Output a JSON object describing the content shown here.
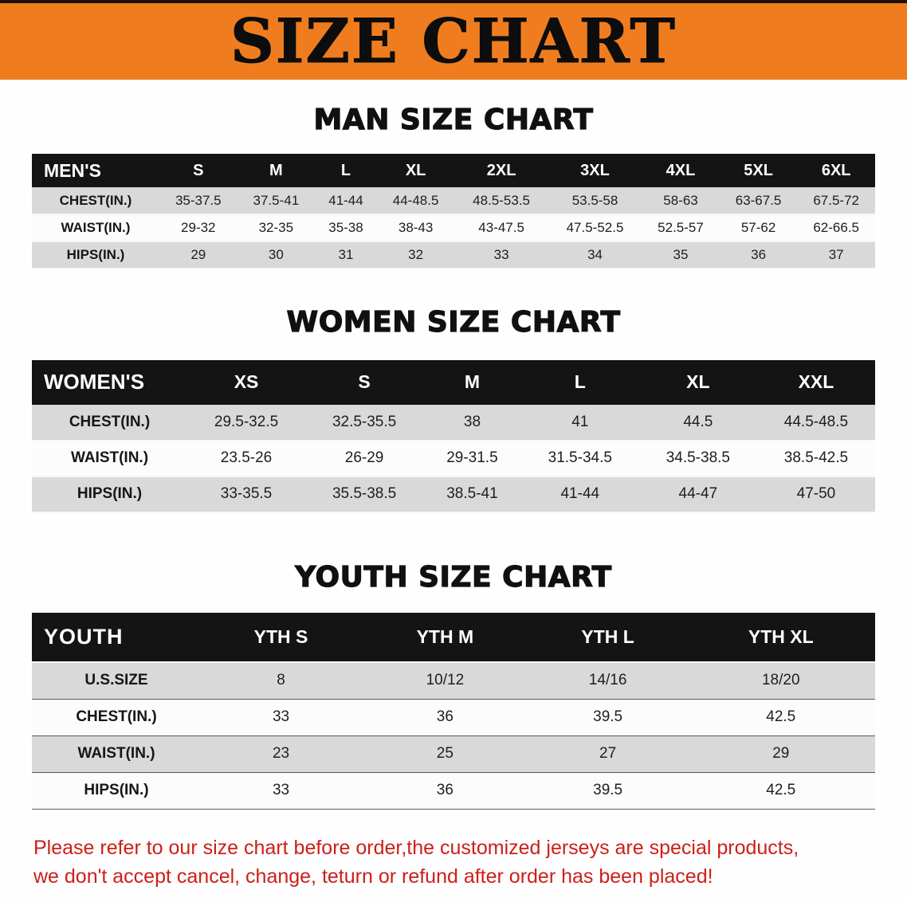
{
  "colors": {
    "banner_bg": "#ef7d1f",
    "table_header_bg": "#141414",
    "stripe_gray": "#d9d9d9",
    "note_red": "#cc1f1a"
  },
  "banner": {
    "title": "SIZE CHART"
  },
  "sections": [
    {
      "heading": "MAN SIZE CHART",
      "table": {
        "header": [
          "MEN'S",
          "S",
          "M",
          "L",
          "XL",
          "2XL",
          "3XL",
          "4XL",
          "5XL",
          "6XL"
        ],
        "rows": [
          [
            "CHEST(IN.)",
            "35-37.5",
            "37.5-41",
            "41-44",
            "44-48.5",
            "48.5-53.5",
            "53.5-58",
            "58-63",
            "63-67.5",
            "67.5-72"
          ],
          [
            "WAIST(IN.)",
            "29-32",
            "32-35",
            "35-38",
            "38-43",
            "43-47.5",
            "47.5-52.5",
            "52.5-57",
            "57-62",
            "62-66.5"
          ],
          [
            "HIPS(IN.)",
            "29",
            "30",
            "31",
            "32",
            "33",
            "34",
            "35",
            "36",
            "37"
          ]
        ]
      }
    },
    {
      "heading": "WOMEN SIZE CHART",
      "table": {
        "header": [
          "WOMEN'S",
          "XS",
          "S",
          "M",
          "L",
          "XL",
          "XXL"
        ],
        "rows": [
          [
            "CHEST(IN.)",
            "29.5-32.5",
            "32.5-35.5",
            "38",
            "41",
            "44.5",
            "44.5-48.5"
          ],
          [
            "WAIST(IN.)",
            "23.5-26",
            "26-29",
            "29-31.5",
            "31.5-34.5",
            "34.5-38.5",
            "38.5-42.5"
          ],
          [
            "HIPS(IN.)",
            "33-35.5",
            "35.5-38.5",
            "38.5-41",
            "41-44",
            "44-47",
            "47-50"
          ]
        ]
      }
    },
    {
      "heading": "YOUTH SIZE CHART",
      "table": {
        "header": [
          "YOUTH",
          "YTH S",
          "YTH M",
          "YTH L",
          "YTH XL"
        ],
        "rows": [
          [
            "U.S.SIZE",
            "8",
            "10/12",
            "14/16",
            "18/20"
          ],
          [
            "CHEST(IN.)",
            "33",
            "36",
            "39.5",
            "42.5"
          ],
          [
            "WAIST(IN.)",
            "23",
            "25",
            "27",
            "29"
          ],
          [
            "HIPS(IN.)",
            "33",
            "36",
            "39.5",
            "42.5"
          ]
        ]
      }
    }
  ],
  "footer_note": {
    "line1": "Please refer to our size chart before order,the customized jerseys are special products,",
    "line2": "we don't accept cancel, change, teturn or refund after order has been placed!"
  }
}
